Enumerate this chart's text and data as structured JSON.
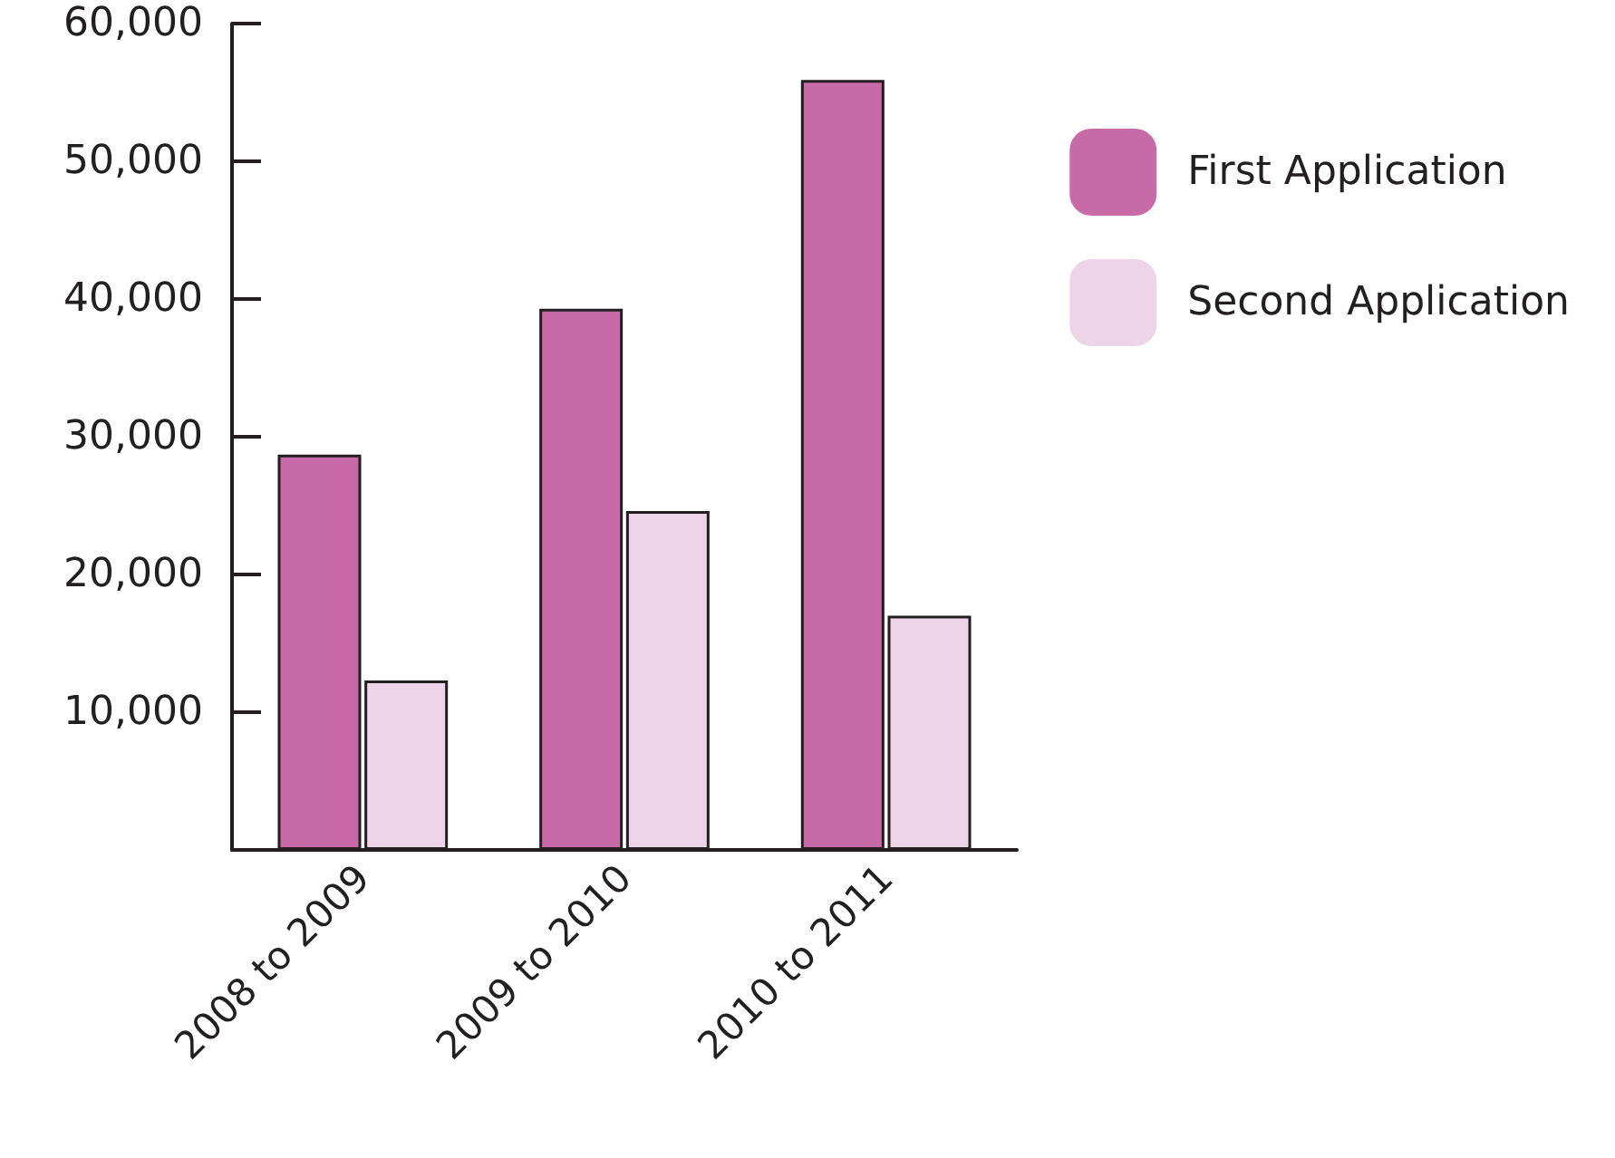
{
  "chart_data": {
    "type": "bar",
    "categories": [
      "2008 to 2009",
      "2009 to 2010",
      "2010 to 2011"
    ],
    "series": [
      {
        "name": "First Application",
        "color": "#c96aa8",
        "values": [
          28700,
          39300,
          55900
        ]
      },
      {
        "name": "Second Application",
        "color": "#eed4e7",
        "values": [
          12300,
          24600,
          17000
        ]
      }
    ],
    "ylim": [
      0,
      60000
    ],
    "yticks": [
      {
        "value": 0,
        "label": null
      },
      {
        "value": 10000,
        "label": "10,000"
      },
      {
        "value": 20000,
        "label": "20,000"
      },
      {
        "value": 30000,
        "label": "30,000"
      },
      {
        "value": 40000,
        "label": "40,000"
      },
      {
        "value": 50000,
        "label": "50,000"
      },
      {
        "value": 60000,
        "label": "60,000"
      }
    ],
    "grid": false,
    "legend": "top right"
  }
}
